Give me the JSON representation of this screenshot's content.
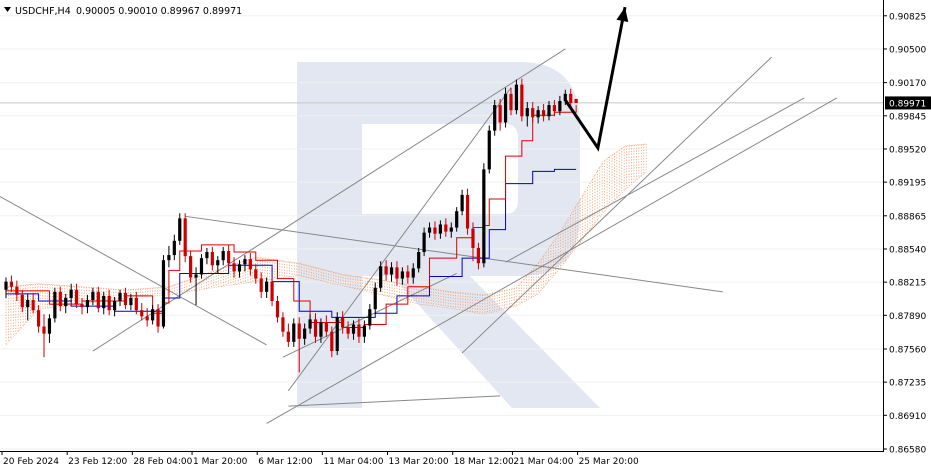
{
  "header": {
    "symbol_timeframe": "USDCHF,H4",
    "ohlc": "0.90005 0.90010 0.89967 0.89971"
  },
  "price_axis": {
    "labels": [
      "0.90825",
      "0.90500",
      "0.90170",
      "0.89845",
      "0.89520",
      "0.89195",
      "0.88865",
      "0.88540",
      "0.88215",
      "0.87890",
      "0.87560",
      "0.87235",
      "0.86910",
      "0.86580"
    ],
    "current_price": "0.89971"
  },
  "time_axis": {
    "labels": [
      "20 Feb 2024",
      "23 Feb 12:00",
      "28 Feb 04:00",
      "1 Mar 20:00",
      "6 Mar 12:00",
      "11 Mar 04:00",
      "13 Mar 20:00",
      "18 Mar 12:00",
      "21 Mar 04:00",
      "25 Mar 20:00"
    ]
  },
  "colors": {
    "bull": "#000000",
    "bear": "#cc0000",
    "tenkan": "#dd0000",
    "kijun": "#0000cc",
    "cloud": "#f0a070",
    "trendline": "#888888",
    "arrow": "#000000",
    "watermark": "#dde3ee",
    "grid": "#f0f0f0"
  },
  "chart_data": {
    "type": "candlestick",
    "symbol": "USDCHF",
    "timeframe": "H4",
    "ylim": [
      0.8658,
      0.9096
    ],
    "x_count": 106,
    "candles": [
      [
        0.8814,
        0.8826,
        0.8806,
        0.8822
      ],
      [
        0.8822,
        0.8828,
        0.8812,
        0.8817
      ],
      [
        0.8817,
        0.8823,
        0.8803,
        0.8809
      ],
      [
        0.8809,
        0.8814,
        0.8792,
        0.8797
      ],
      [
        0.8797,
        0.881,
        0.8784,
        0.8804
      ],
      [
        0.8804,
        0.8811,
        0.8791,
        0.8794
      ],
      [
        0.8794,
        0.8799,
        0.8772,
        0.8778
      ],
      [
        0.8778,
        0.879,
        0.8748,
        0.8771
      ],
      [
        0.8771,
        0.879,
        0.8762,
        0.8786
      ],
      [
        0.8786,
        0.8816,
        0.8782,
        0.8812
      ],
      [
        0.8812,
        0.8817,
        0.8793,
        0.8798
      ],
      [
        0.8798,
        0.881,
        0.8791,
        0.8806
      ],
      [
        0.8806,
        0.882,
        0.8802,
        0.8814
      ],
      [
        0.8814,
        0.882,
        0.8796,
        0.88
      ],
      [
        0.88,
        0.8806,
        0.879,
        0.8797
      ],
      [
        0.8797,
        0.8809,
        0.8791,
        0.8804
      ],
      [
        0.8804,
        0.8816,
        0.8799,
        0.8812
      ],
      [
        0.8812,
        0.8817,
        0.8792,
        0.8796
      ],
      [
        0.8796,
        0.8812,
        0.879,
        0.8808
      ],
      [
        0.8808,
        0.8814,
        0.8789,
        0.8794
      ],
      [
        0.8794,
        0.8807,
        0.8788,
        0.8803
      ],
      [
        0.8803,
        0.8814,
        0.8798,
        0.8811
      ],
      [
        0.8811,
        0.8816,
        0.8795,
        0.8799
      ],
      [
        0.8799,
        0.881,
        0.8794,
        0.8806
      ],
      [
        0.8806,
        0.8812,
        0.879,
        0.8794
      ],
      [
        0.8794,
        0.8801,
        0.8784,
        0.8788
      ],
      [
        0.8788,
        0.8796,
        0.8778,
        0.8784
      ],
      [
        0.8784,
        0.8799,
        0.878,
        0.8795
      ],
      [
        0.8795,
        0.88,
        0.8772,
        0.8778
      ],
      [
        0.8778,
        0.8848,
        0.8776,
        0.8843
      ],
      [
        0.8843,
        0.8857,
        0.8836,
        0.8848
      ],
      [
        0.8848,
        0.8868,
        0.8843,
        0.8862
      ],
      [
        0.8862,
        0.8889,
        0.8858,
        0.8884
      ],
      [
        0.8884,
        0.8889,
        0.8841,
        0.8847
      ],
      [
        0.8847,
        0.8852,
        0.8821,
        0.8826
      ],
      [
        0.8826,
        0.8836,
        0.8799,
        0.8829
      ],
      [
        0.8829,
        0.8849,
        0.8825,
        0.8845
      ],
      [
        0.8845,
        0.8855,
        0.8839,
        0.8851
      ],
      [
        0.8851,
        0.8856,
        0.8833,
        0.8838
      ],
      [
        0.8838,
        0.8847,
        0.883,
        0.8843
      ],
      [
        0.8843,
        0.8856,
        0.8838,
        0.8852
      ],
      [
        0.8852,
        0.8858,
        0.8835,
        0.884
      ],
      [
        0.884,
        0.8846,
        0.8826,
        0.8832
      ],
      [
        0.8832,
        0.8843,
        0.8826,
        0.8839
      ],
      [
        0.8839,
        0.8848,
        0.8832,
        0.8844
      ],
      [
        0.8844,
        0.885,
        0.8828,
        0.8834
      ],
      [
        0.8834,
        0.8839,
        0.882,
        0.8825
      ],
      [
        0.8825,
        0.8831,
        0.8806,
        0.8812
      ],
      [
        0.8812,
        0.8826,
        0.8806,
        0.8822
      ],
      [
        0.8822,
        0.8827,
        0.8798,
        0.8803
      ],
      [
        0.8803,
        0.8808,
        0.8782,
        0.8787
      ],
      [
        0.8787,
        0.8792,
        0.8768,
        0.8773
      ],
      [
        0.8773,
        0.8781,
        0.8758,
        0.8763
      ],
      [
        0.8763,
        0.8786,
        0.8758,
        0.8781
      ],
      [
        0.8781,
        0.8787,
        0.8733,
        0.8766
      ],
      [
        0.8766,
        0.8781,
        0.876,
        0.8776
      ],
      [
        0.8776,
        0.879,
        0.8771,
        0.8785
      ],
      [
        0.8785,
        0.8791,
        0.8762,
        0.8768
      ],
      [
        0.8768,
        0.8786,
        0.8762,
        0.8782
      ],
      [
        0.8782,
        0.8789,
        0.8768,
        0.8773
      ],
      [
        0.8773,
        0.8778,
        0.8748,
        0.8754
      ],
      [
        0.8754,
        0.8792,
        0.875,
        0.8787
      ],
      [
        0.8787,
        0.8793,
        0.8771,
        0.8777
      ],
      [
        0.8777,
        0.8783,
        0.8766,
        0.8771
      ],
      [
        0.8771,
        0.8784,
        0.8765,
        0.878
      ],
      [
        0.878,
        0.8786,
        0.8762,
        0.8768
      ],
      [
        0.8768,
        0.8784,
        0.8762,
        0.8779
      ],
      [
        0.8779,
        0.88,
        0.8775,
        0.8795
      ],
      [
        0.8795,
        0.8821,
        0.879,
        0.8816
      ],
      [
        0.8816,
        0.8842,
        0.8812,
        0.8837
      ],
      [
        0.8837,
        0.8843,
        0.8823,
        0.8829
      ],
      [
        0.8829,
        0.8841,
        0.8822,
        0.8836
      ],
      [
        0.8836,
        0.8842,
        0.8818,
        0.8825
      ],
      [
        0.8825,
        0.8836,
        0.8819,
        0.8832
      ],
      [
        0.8832,
        0.8838,
        0.882,
        0.8826
      ],
      [
        0.8826,
        0.884,
        0.882,
        0.8835
      ],
      [
        0.8835,
        0.8855,
        0.8831,
        0.8851
      ],
      [
        0.8851,
        0.8875,
        0.8847,
        0.887
      ],
      [
        0.887,
        0.888,
        0.8865,
        0.8875
      ],
      [
        0.8875,
        0.8881,
        0.8863,
        0.8869
      ],
      [
        0.8869,
        0.8882,
        0.8864,
        0.8878
      ],
      [
        0.8878,
        0.8884,
        0.8866,
        0.8871
      ],
      [
        0.8871,
        0.888,
        0.8865,
        0.8875
      ],
      [
        0.8875,
        0.8895,
        0.8871,
        0.8891
      ],
      [
        0.8891,
        0.8912,
        0.8887,
        0.8907
      ],
      [
        0.8907,
        0.8913,
        0.8868,
        0.8874
      ],
      [
        0.8874,
        0.888,
        0.8842,
        0.8855
      ],
      [
        0.8855,
        0.886,
        0.8834,
        0.884
      ],
      [
        0.884,
        0.8938,
        0.8836,
        0.8932
      ],
      [
        0.8932,
        0.8975,
        0.8928,
        0.897
      ],
      [
        0.897,
        0.9,
        0.8965,
        0.8995
      ],
      [
        0.8995,
        0.9001,
        0.897,
        0.8978
      ],
      [
        0.8978,
        0.9012,
        0.8973,
        0.9006
      ],
      [
        0.9006,
        0.9012,
        0.8985,
        0.899
      ],
      [
        0.899,
        0.902,
        0.8986,
        0.9015
      ],
      [
        0.9015,
        0.9021,
        0.8979,
        0.8984
      ],
      [
        0.8984,
        0.8998,
        0.8974,
        0.8992
      ],
      [
        0.8992,
        0.8998,
        0.8978,
        0.8983
      ],
      [
        0.8983,
        0.8994,
        0.8977,
        0.899
      ],
      [
        0.899,
        0.8996,
        0.8979,
        0.8984
      ],
      [
        0.8984,
        0.8999,
        0.898,
        0.8995
      ],
      [
        0.8995,
        0.9,
        0.8984,
        0.8989
      ],
      [
        0.8989,
        0.9004,
        0.8985,
        0.8999
      ],
      [
        0.8999,
        0.901,
        0.8995,
        0.9006
      ],
      [
        0.9006,
        0.9011,
        0.8992,
        0.8997
      ],
      [
        0.9001,
        0.9001,
        0.8997,
        0.8997
      ]
    ],
    "tenkan": [
      [
        0,
        0.8813
      ],
      [
        8,
        0.88
      ],
      [
        14,
        0.8803
      ],
      [
        22,
        0.8808
      ],
      [
        27,
        0.8791
      ],
      [
        29,
        0.8801
      ],
      [
        30,
        0.8833
      ],
      [
        32,
        0.8852
      ],
      [
        36,
        0.8858
      ],
      [
        42,
        0.8851
      ],
      [
        46,
        0.8843
      ],
      [
        50,
        0.8825
      ],
      [
        53,
        0.8803
      ],
      [
        56,
        0.8782
      ],
      [
        62,
        0.8777
      ],
      [
        66,
        0.878
      ],
      [
        70,
        0.88
      ],
      [
        74,
        0.8817
      ],
      [
        78,
        0.8845
      ],
      [
        83,
        0.8865
      ],
      [
        86,
        0.8875
      ],
      [
        88,
        0.8877
      ],
      [
        89,
        0.8903
      ],
      [
        92,
        0.8945
      ],
      [
        95,
        0.896
      ],
      [
        97,
        0.8985
      ],
      [
        101,
        0.8988
      ],
      [
        105,
        0.8995
      ]
    ],
    "kijun": [
      [
        0,
        0.881
      ],
      [
        6,
        0.8803
      ],
      [
        12,
        0.8798
      ],
      [
        20,
        0.8793
      ],
      [
        29,
        0.8806
      ],
      [
        32,
        0.883
      ],
      [
        41,
        0.8838
      ],
      [
        49,
        0.8822
      ],
      [
        54,
        0.8793
      ],
      [
        60,
        0.8787
      ],
      [
        68,
        0.8791
      ],
      [
        72,
        0.8808
      ],
      [
        78,
        0.8827
      ],
      [
        84,
        0.8845
      ],
      [
        89,
        0.8873
      ],
      [
        92,
        0.8918
      ],
      [
        97,
        0.893
      ],
      [
        101,
        0.8932
      ],
      [
        105,
        0.8932
      ]
    ],
    "cloud": [
      [
        0,
        0.8817,
        0.876
      ],
      [
        6,
        0.882,
        0.8795
      ],
      [
        14,
        0.8817,
        0.88
      ],
      [
        22,
        0.8814,
        0.8806
      ],
      [
        30,
        0.8817,
        0.8809
      ],
      [
        38,
        0.8832,
        0.8816
      ],
      [
        46,
        0.8846,
        0.8822
      ],
      [
        54,
        0.884,
        0.8828
      ],
      [
        62,
        0.8829,
        0.8818
      ],
      [
        70,
        0.8823,
        0.8808
      ],
      [
        76,
        0.8817,
        0.88
      ],
      [
        82,
        0.8812,
        0.8796
      ],
      [
        88,
        0.8809,
        0.879
      ],
      [
        94,
        0.8816,
        0.8798
      ],
      [
        98,
        0.884,
        0.881
      ],
      [
        102,
        0.887,
        0.8835
      ],
      [
        106,
        0.8905,
        0.8862
      ],
      [
        110,
        0.894,
        0.889
      ],
      [
        114,
        0.8955,
        0.8912
      ],
      [
        118,
        0.8957,
        0.893
      ]
    ],
    "trendlines": [
      [
        [
          -2,
          0.8908
        ],
        [
          48,
          0.876
        ]
      ],
      [
        [
          33,
          0.8886
        ],
        [
          132,
          0.8812
        ]
      ],
      [
        [
          16,
          0.8754
        ],
        [
          103,
          0.905
        ]
      ],
      [
        [
          52,
          0.8715
        ],
        [
          93,
          0.9012
        ]
      ],
      [
        [
          51,
          0.8748
        ],
        [
          83,
          0.883
        ]
      ],
      [
        [
          92,
          0.8841
        ],
        [
          147,
          0.9002
        ]
      ],
      [
        [
          48,
          0.8683
        ],
        [
          153,
          0.9002
        ]
      ],
      [
        [
          84,
          0.8752
        ],
        [
          141,
          0.9042
        ]
      ],
      [
        [
          52,
          0.87
        ],
        [
          91,
          0.871
        ]
      ]
    ],
    "arrow_path": [
      [
        103,
        0.9
      ],
      [
        109,
        0.8953
      ],
      [
        114,
        0.9091
      ]
    ],
    "grid": true,
    "indicator": "Ichimoku"
  }
}
